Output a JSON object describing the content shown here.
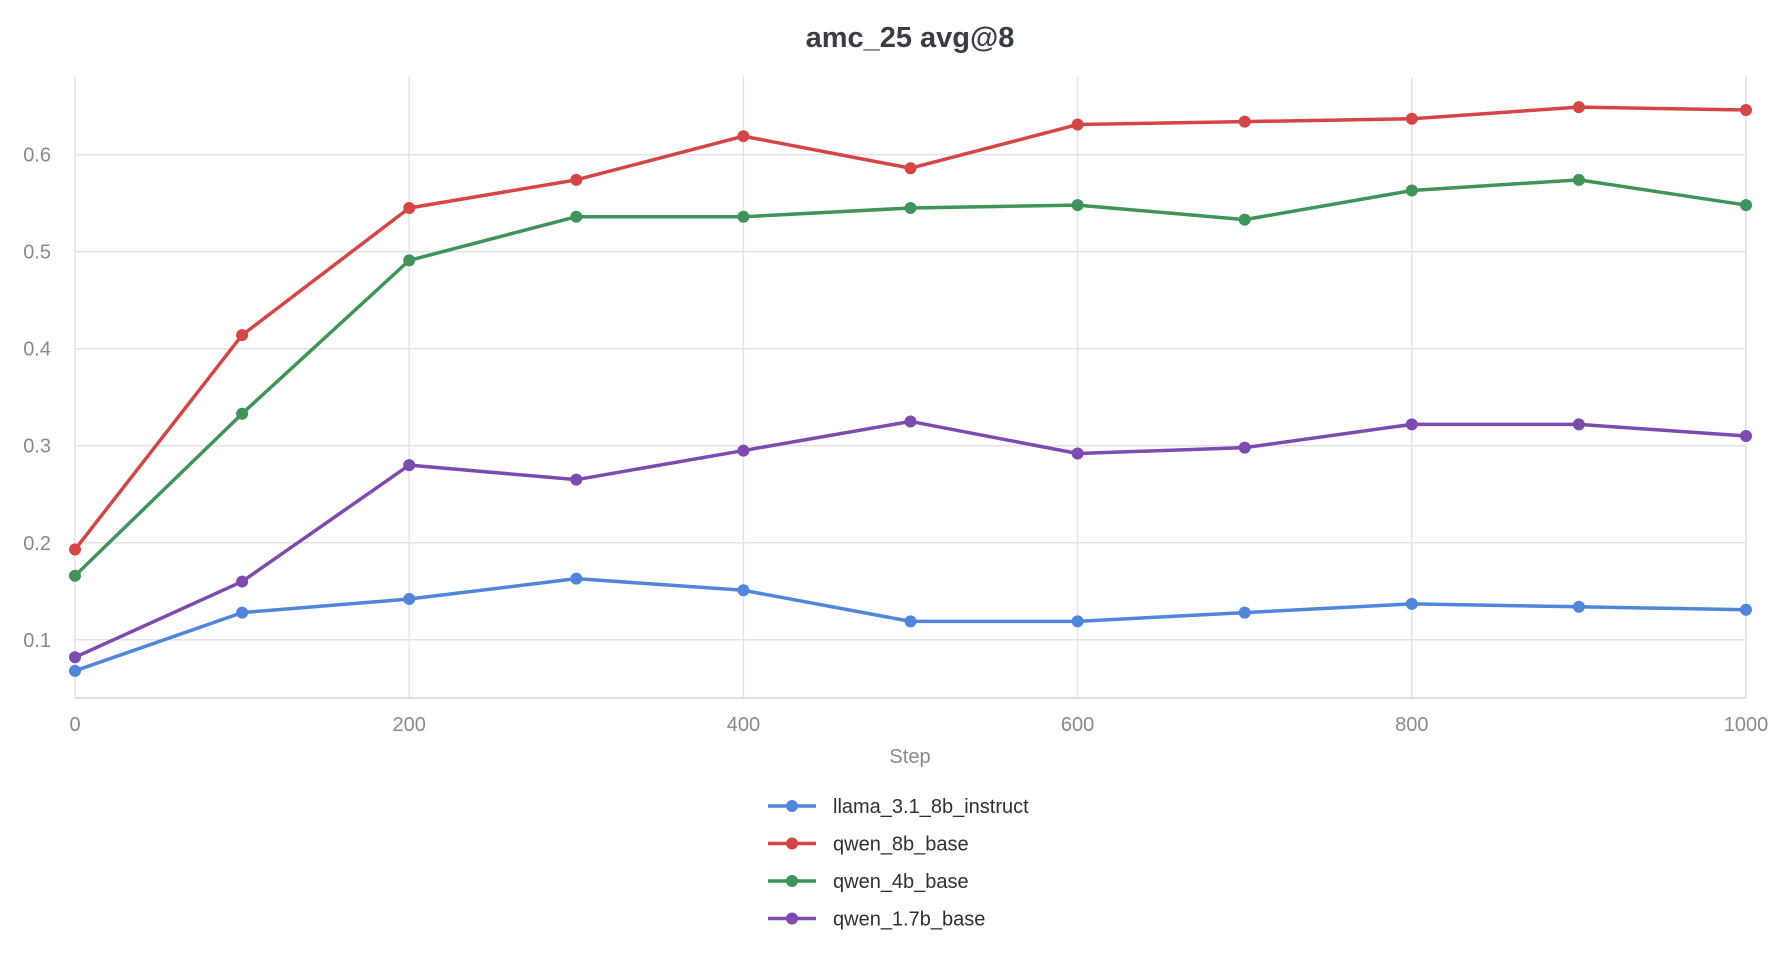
{
  "chart_data": {
    "type": "line",
    "title": "amc_25 avg@8",
    "xlabel": "Step",
    "ylabel": "",
    "xlim": [
      0,
      1000
    ],
    "ylim": [
      0.04,
      0.68
    ],
    "x_ticks": [
      0,
      200,
      400,
      600,
      800,
      1000
    ],
    "x_tick_labels": [
      "0",
      "200",
      "400",
      "600",
      "800",
      "1000"
    ],
    "y_ticks": [
      0.1,
      0.2,
      0.3,
      0.4,
      0.5,
      0.6
    ],
    "y_tick_labels": [
      "0.1",
      "0.2",
      "0.3",
      "0.4",
      "0.5",
      "0.6"
    ],
    "grid": true,
    "legend_position": "bottom-center",
    "x": [
      0,
      100,
      200,
      300,
      400,
      500,
      600,
      700,
      800,
      900,
      1000
    ],
    "series": [
      {
        "name": "llama_3.1_8b_instruct",
        "color": "#4f86dc",
        "values": [
          0.068,
          0.128,
          0.142,
          0.163,
          0.151,
          0.119,
          0.119,
          0.128,
          0.137,
          0.134,
          0.131
        ]
      },
      {
        "name": "qwen_8b_base",
        "color": "#d64545",
        "values": [
          0.193,
          0.414,
          0.545,
          0.574,
          0.619,
          0.586,
          0.631,
          0.634,
          0.637,
          0.649,
          0.646
        ]
      },
      {
        "name": "qwen_4b_base",
        "color": "#3f9459",
        "values": [
          0.166,
          0.333,
          0.491,
          0.536,
          0.536,
          0.545,
          0.548,
          0.533,
          0.563,
          0.574,
          0.548
        ]
      },
      {
        "name": "qwen_1.7b_base",
        "color": "#7b4bb0",
        "values": [
          0.082,
          0.16,
          0.28,
          0.265,
          0.295,
          0.325,
          0.292,
          0.298,
          0.322,
          0.322,
          0.31
        ]
      }
    ]
  }
}
